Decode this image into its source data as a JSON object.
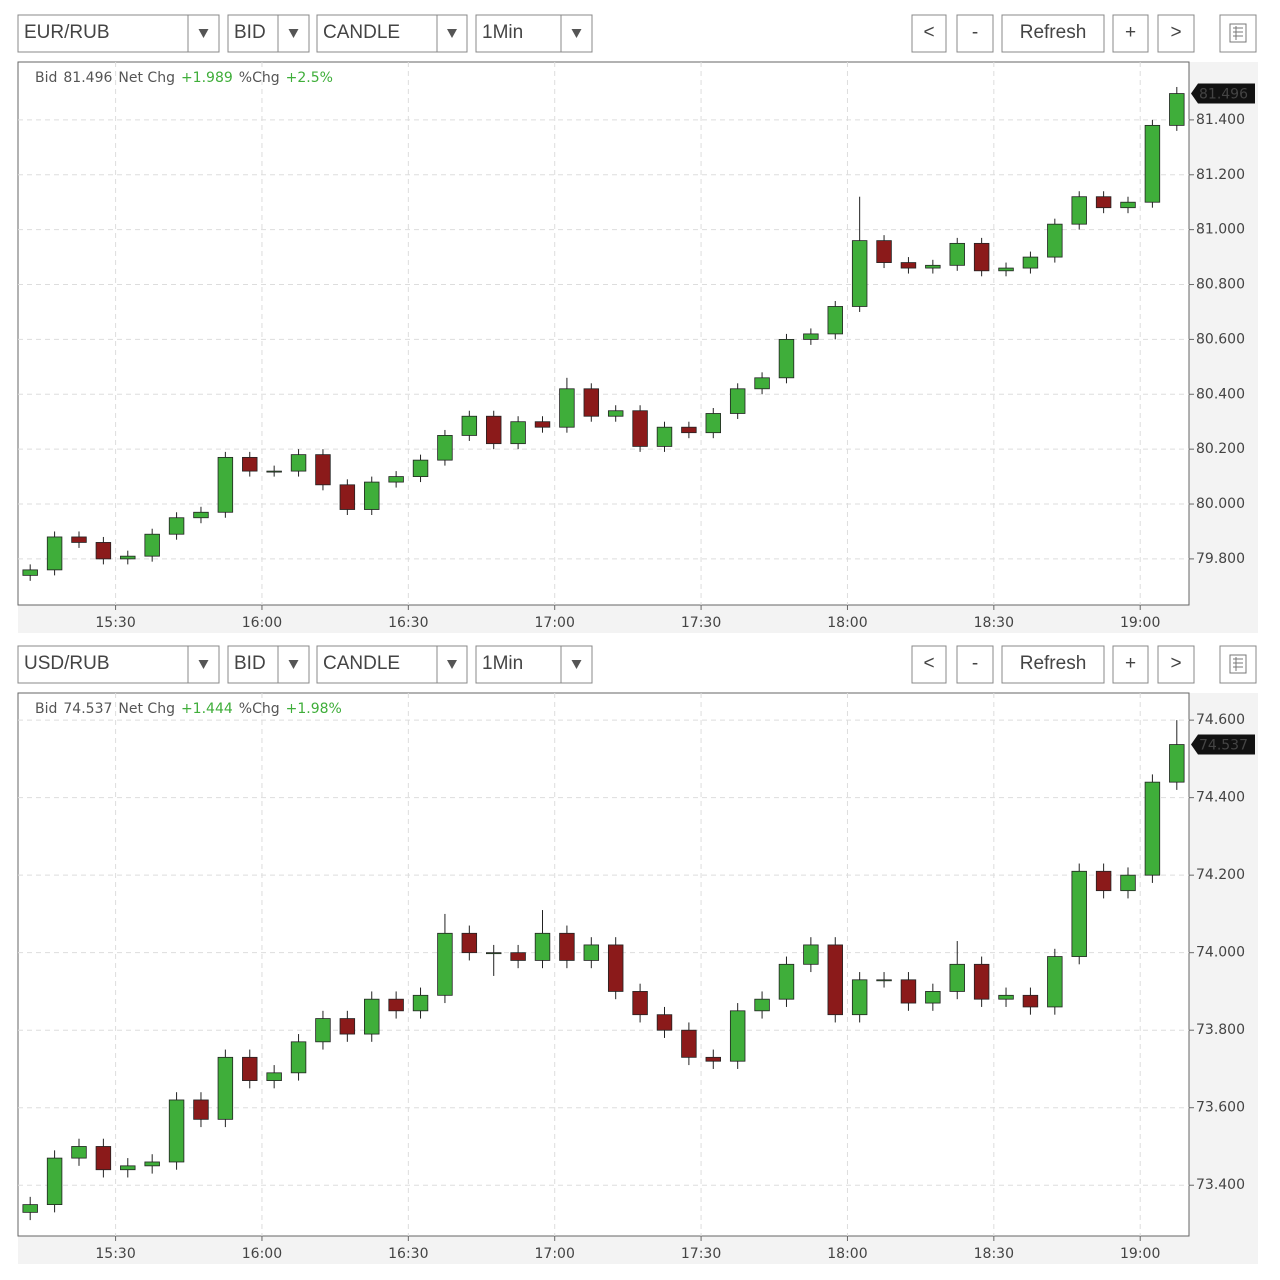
{
  "chart_data": [
    {
      "type": "candlestick",
      "toolbar": {
        "symbol": "EUR/RUB",
        "side": "BID",
        "style": "CANDLE",
        "interval": "1Min",
        "buttons": [
          "<",
          "-",
          "Refresh",
          "+",
          ">"
        ]
      },
      "header": {
        "bid_label": "Bid",
        "bid": 81.496,
        "net_chg_label": "Net Chg",
        "net_chg": {
          "value": 1.989,
          "label": "+1.989"
        },
        "pct_chg_label": "%Chg",
        "pct_chg": {
          "value": 2.5,
          "label": "+2.5%"
        }
      },
      "up_color": "#3fae3a",
      "down_color": "#8b1a1a",
      "grid": true,
      "x": [
        "15:10",
        "15:15",
        "15:20",
        "15:25",
        "15:30",
        "15:35",
        "15:40",
        "15:45",
        "15:50",
        "15:55",
        "16:00",
        "16:05",
        "16:10",
        "16:15",
        "16:20",
        "16:25",
        "16:30",
        "16:35",
        "16:40",
        "16:45",
        "16:50",
        "16:55",
        "17:00",
        "17:05",
        "17:10",
        "17:15",
        "17:20",
        "17:25",
        "17:30",
        "17:35",
        "17:40",
        "17:45",
        "17:50",
        "17:55",
        "18:00",
        "18:05",
        "18:10",
        "18:15",
        "18:20",
        "18:25",
        "18:30",
        "18:35",
        "18:40",
        "18:45",
        "18:50",
        "18:55",
        "19:00",
        "19:05"
      ],
      "open": [
        79.74,
        79.76,
        79.88,
        79.86,
        79.8,
        79.81,
        79.89,
        79.95,
        79.97,
        80.17,
        80.12,
        80.12,
        80.18,
        80.07,
        79.98,
        80.08,
        80.1,
        80.16,
        80.25,
        80.32,
        80.22,
        80.3,
        80.28,
        80.42,
        80.32,
        80.34,
        80.21,
        80.28,
        80.26,
        80.33,
        80.42,
        80.46,
        80.6,
        80.62,
        80.72,
        80.96,
        80.88,
        80.86,
        80.87,
        80.95,
        80.85,
        80.86,
        80.9,
        81.02,
        81.12,
        81.08,
        81.1,
        81.38
      ],
      "high": [
        79.78,
        79.9,
        79.9,
        79.88,
        79.83,
        79.91,
        79.97,
        79.99,
        80.19,
        80.19,
        80.14,
        80.2,
        80.2,
        80.09,
        80.1,
        80.12,
        80.18,
        80.27,
        80.34,
        80.34,
        80.32,
        80.32,
        80.46,
        80.44,
        80.36,
        80.36,
        80.3,
        80.3,
        80.35,
        80.44,
        80.48,
        80.62,
        80.64,
        80.74,
        81.12,
        80.98,
        80.9,
        80.89,
        80.97,
        80.97,
        80.88,
        80.92,
        81.04,
        81.14,
        81.14,
        81.12,
        81.4,
        81.52
      ],
      "low": [
        79.72,
        79.74,
        79.84,
        79.78,
        79.78,
        79.79,
        79.87,
        79.93,
        79.95,
        80.1,
        80.1,
        80.1,
        80.05,
        79.96,
        79.96,
        80.06,
        80.08,
        80.14,
        80.23,
        80.2,
        80.2,
        80.26,
        80.26,
        80.3,
        80.3,
        80.19,
        80.19,
        80.24,
        80.24,
        80.31,
        80.4,
        80.44,
        80.58,
        80.6,
        80.7,
        80.86,
        80.84,
        80.84,
        80.85,
        80.83,
        80.83,
        80.84,
        80.88,
        81.0,
        81.06,
        81.06,
        81.08,
        81.36
      ],
      "close": [
        79.76,
        79.88,
        79.86,
        79.8,
        79.81,
        79.89,
        79.95,
        79.97,
        80.17,
        80.12,
        80.12,
        80.18,
        80.07,
        79.98,
        80.08,
        80.1,
        80.16,
        80.25,
        80.32,
        80.22,
        80.3,
        80.28,
        80.42,
        80.32,
        80.34,
        80.21,
        80.28,
        80.26,
        80.33,
        80.42,
        80.46,
        80.6,
        80.62,
        80.72,
        80.96,
        80.88,
        80.86,
        80.87,
        80.95,
        80.85,
        80.86,
        80.9,
        81.02,
        81.12,
        81.08,
        81.1,
        81.38,
        81.496
      ],
      "xlim": [
        "15:10",
        "19:10"
      ],
      "xticks": [
        "15:30",
        "16:00",
        "16:30",
        "17:00",
        "17:30",
        "18:00",
        "18:30",
        "19:00"
      ],
      "ylim": [
        79.632,
        81.611
      ],
      "yticks": [
        {
          "value": 79.8,
          "label": "79.800"
        },
        {
          "value": 80.0,
          "label": "80.000"
        },
        {
          "value": 80.2,
          "label": "80.200"
        },
        {
          "value": 80.4,
          "label": "80.400"
        },
        {
          "value": 80.6,
          "label": "80.600"
        },
        {
          "value": 80.8,
          "label": "80.800"
        },
        {
          "value": 81.0,
          "label": "81.000"
        },
        {
          "value": 81.2,
          "label": "81.200"
        },
        {
          "value": 81.4,
          "label": "81.400"
        }
      ]
    },
    {
      "type": "candlestick",
      "toolbar": {
        "symbol": "USD/RUB",
        "side": "BID",
        "style": "CANDLE",
        "interval": "1Min",
        "buttons": [
          "<",
          "-",
          "Refresh",
          "+",
          ">"
        ]
      },
      "header": {
        "bid_label": "Bid",
        "bid": 74.537,
        "net_chg_label": "Net Chg",
        "net_chg": {
          "value": 1.444,
          "label": "+1.444"
        },
        "pct_chg_label": "%Chg",
        "pct_chg": {
          "value": 1.98,
          "label": "+1.98%"
        }
      },
      "up_color": "#3fae3a",
      "down_color": "#8b1a1a",
      "grid": true,
      "x": [
        "15:10",
        "15:15",
        "15:20",
        "15:25",
        "15:30",
        "15:35",
        "15:40",
        "15:45",
        "15:50",
        "15:55",
        "16:00",
        "16:05",
        "16:10",
        "16:15",
        "16:20",
        "16:25",
        "16:30",
        "16:35",
        "16:40",
        "16:45",
        "16:50",
        "16:55",
        "17:00",
        "17:05",
        "17:10",
        "17:15",
        "17:20",
        "17:25",
        "17:30",
        "17:35",
        "17:40",
        "17:45",
        "17:50",
        "17:55",
        "18:00",
        "18:05",
        "18:10",
        "18:15",
        "18:20",
        "18:25",
        "18:30",
        "18:35",
        "18:40",
        "18:45",
        "18:50",
        "18:55",
        "19:00",
        "19:05"
      ],
      "open": [
        73.33,
        73.35,
        73.47,
        73.5,
        73.44,
        73.45,
        73.46,
        73.62,
        73.57,
        73.73,
        73.67,
        73.69,
        73.77,
        73.83,
        73.79,
        73.88,
        73.85,
        73.89,
        74.05,
        74.0,
        74.0,
        73.98,
        74.05,
        73.98,
        74.02,
        73.9,
        73.84,
        73.8,
        73.73,
        73.72,
        73.85,
        73.88,
        73.97,
        74.02,
        73.84,
        73.93,
        73.93,
        73.87,
        73.9,
        73.97,
        73.88,
        73.89,
        73.86,
        73.99,
        74.21,
        74.16,
        74.2,
        74.44
      ],
      "high": [
        73.37,
        73.49,
        73.52,
        73.52,
        73.47,
        73.48,
        73.64,
        73.64,
        73.75,
        73.75,
        73.71,
        73.79,
        73.85,
        73.85,
        73.9,
        73.9,
        73.91,
        74.1,
        74.07,
        74.02,
        74.02,
        74.11,
        74.07,
        74.04,
        74.04,
        73.92,
        73.86,
        73.82,
        73.75,
        73.87,
        73.9,
        73.99,
        74.04,
        74.04,
        73.95,
        73.95,
        73.95,
        73.92,
        74.03,
        73.99,
        73.91,
        73.91,
        74.01,
        74.23,
        74.23,
        74.22,
        74.46,
        74.6
      ],
      "low": [
        73.31,
        73.33,
        73.45,
        73.42,
        73.42,
        73.43,
        73.44,
        73.55,
        73.55,
        73.65,
        73.65,
        73.67,
        73.75,
        73.77,
        73.77,
        73.83,
        73.83,
        73.87,
        73.98,
        73.94,
        73.96,
        73.96,
        73.96,
        73.96,
        73.88,
        73.82,
        73.78,
        73.71,
        73.7,
        73.7,
        73.83,
        73.86,
        73.95,
        73.82,
        73.82,
        73.91,
        73.85,
        73.85,
        73.88,
        73.86,
        73.86,
        73.84,
        73.84,
        73.97,
        74.14,
        74.14,
        74.18,
        74.42
      ],
      "close": [
        73.35,
        73.47,
        73.5,
        73.44,
        73.45,
        73.46,
        73.62,
        73.57,
        73.73,
        73.67,
        73.69,
        73.77,
        73.83,
        73.79,
        73.88,
        73.85,
        73.89,
        74.05,
        74.0,
        74.0,
        73.98,
        74.05,
        73.98,
        74.02,
        73.9,
        73.84,
        73.8,
        73.73,
        73.72,
        73.85,
        73.88,
        73.97,
        74.02,
        73.84,
        73.93,
        73.93,
        73.87,
        73.9,
        73.97,
        73.88,
        73.89,
        73.86,
        73.99,
        74.21,
        74.16,
        74.2,
        74.44,
        74.537
      ],
      "xlim": [
        "15:10",
        "19:10"
      ],
      "xticks": [
        "15:30",
        "16:00",
        "16:30",
        "17:00",
        "17:30",
        "18:00",
        "18:30",
        "19:00"
      ],
      "ylim": [
        73.269,
        74.67
      ],
      "yticks": [
        {
          "value": 73.4,
          "label": "73.400"
        },
        {
          "value": 73.6,
          "label": "73.600"
        },
        {
          "value": 73.8,
          "label": "73.800"
        },
        {
          "value": 74.0,
          "label": "74.000"
        },
        {
          "value": 74.2,
          "label": "74.200"
        },
        {
          "value": 74.4,
          "label": "74.400"
        },
        {
          "value": 74.6,
          "label": "74.600"
        }
      ]
    }
  ]
}
